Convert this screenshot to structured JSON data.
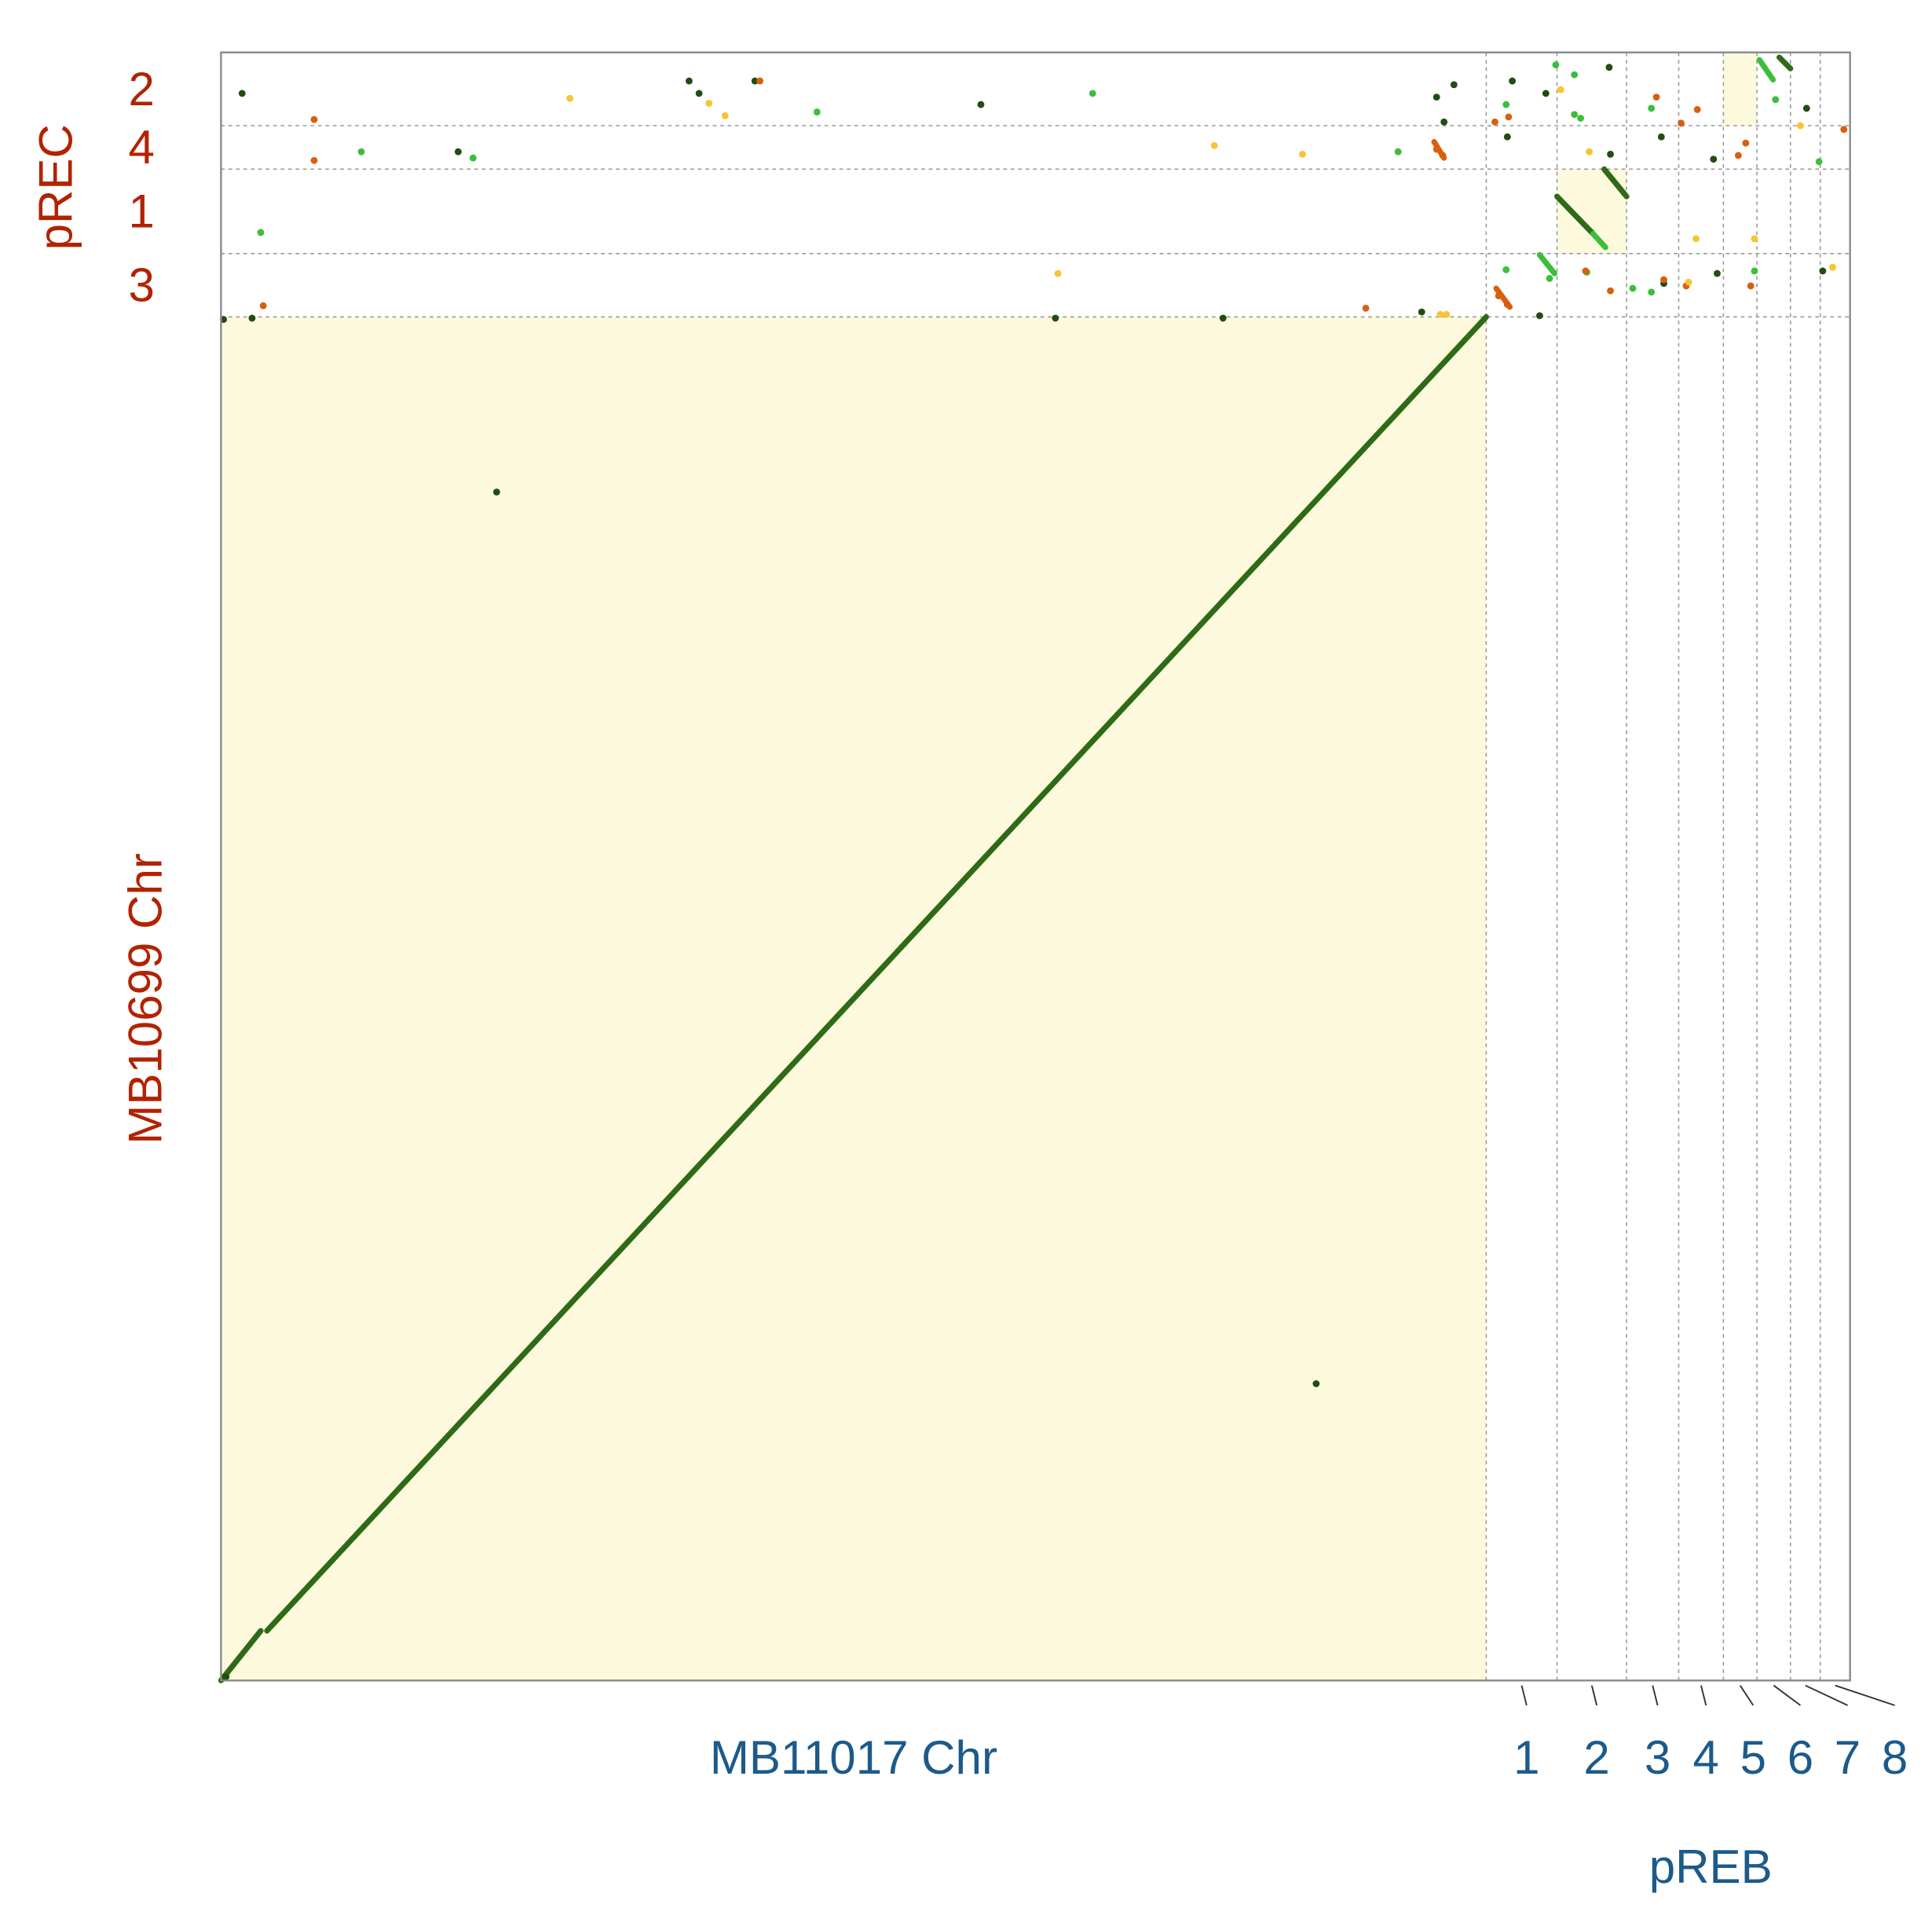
{
  "chart_data": {
    "type": "dotplot",
    "x_sequences": [
      {
        "name": "MB11017 Chr",
        "length": 5095
      },
      {
        "name": "1",
        "length": 285
      },
      {
        "name": "2",
        "length": 280
      },
      {
        "name": "3",
        "length": 210
      },
      {
        "name": "4",
        "length": 180
      },
      {
        "name": "5",
        "length": 135
      },
      {
        "name": "6",
        "length": 135
      },
      {
        "name": "7",
        "length": 120
      },
      {
        "name": "8",
        "length": 120
      }
    ],
    "x_group_label": "pREB",
    "y_sequences": [
      {
        "name": "MB10699 Chr",
        "length": 5490
      },
      {
        "name": "3",
        "length": 255
      },
      {
        "name": "1",
        "length": 340
      },
      {
        "name": "4",
        "length": 175
      },
      {
        "name": "2",
        "length": 295
      }
    ],
    "y_group_label": "pREC",
    "xlim": [
      0,
      6560
    ],
    "ylim": [
      0,
      6555
    ],
    "highlights": [
      [
        "MB11017 Chr",
        "MB10699 Chr"
      ],
      [
        "2",
        "1"
      ],
      [
        "5",
        "2"
      ]
    ],
    "series": [
      {
        "color": "#1f4d12",
        "x": [
          85,
          1885,
          1925,
          2150,
          3060,
          955,
          4895,
          4965,
          4925,
          5200,
          5335,
          5590,
          5180,
          5595,
          5800,
          6010,
          6385,
          6450,
          5310,
          4835,
          10,
          125,
          3360,
          4035,
          1110,
          4410,
          20,
          5810,
          6025
        ],
        "y": [
          6390,
          6440,
          6390,
          6440,
          6345,
          6155,
          6375,
          6425,
          6275,
          6440,
          6390,
          6495,
          6215,
          6145,
          6215,
          6125,
          6330,
          5675,
          5495,
          5510,
          5480,
          5485,
          5485,
          5485,
          4785,
          1195,
          15,
          5625,
          5665
        ]
      },
      {
        "color": "#3bbf3b",
        "x": [
          5375,
          5450,
          5175,
          3510,
          2400,
          565,
          1015,
          4740,
          5450,
          5475,
          5760,
          6260,
          5175,
          5350,
          5685,
          5760,
          6175,
          6435,
          160,
          5500
        ],
        "y": [
          6505,
          6465,
          6345,
          6390,
          6315,
          6155,
          6130,
          6155,
          6305,
          6290,
          6330,
          6365,
          5680,
          5645,
          5605,
          5590,
          5675,
          6115,
          5830,
          5670
        ]
      },
      {
        "color": "#d95f0e",
        "x": [
          375,
          375,
          2170,
          4895,
          4920,
          5130,
          5185,
          5780,
          5880,
          5945,
          6140,
          6110,
          6535,
          5810,
          5900,
          6160,
          4610,
          170,
          5145,
          5180,
          5495,
          5595
        ],
        "y": [
          6285,
          6120,
          6440,
          6165,
          6140,
          6275,
          6295,
          6375,
          6270,
          6325,
          6190,
          6140,
          6245,
          5640,
          5615,
          5615,
          5525,
          5535,
          5575,
          5540,
          5675,
          5595
        ]
      },
      {
        "color": "#f7c531",
        "x": [
          1405,
          1965,
          2030,
          4000,
          4355,
          3370,
          4910,
          4935,
          5395,
          5510,
          5940,
          5910,
          6175,
          6360,
          6490
        ],
        "y": [
          6370,
          6350,
          6300,
          6180,
          6145,
          5665,
          5500,
          5500,
          6405,
          6155,
          5805,
          5630,
          5805,
          6260,
          5690
        ]
      }
    ],
    "segments": [
      {
        "color": "#2f6a16",
        "x": [
          0,
          160
        ],
        "y": [
          0,
          200
        ]
      },
      {
        "color": "#2f6a16",
        "x": [
          185,
          5095
        ],
        "y": [
          200,
          5490
        ]
      },
      {
        "color": "#2f6a16",
        "x": [
          5380,
          5525
        ],
        "y": [
          5975,
          5825
        ]
      },
      {
        "color": "#3bbf3b",
        "x": [
          5525,
          5575
        ],
        "y": [
          5825,
          5770
        ]
      },
      {
        "color": "#2f6a16",
        "x": [
          5570,
          5660
        ],
        "y": [
          6085,
          5975
        ]
      },
      {
        "color": "#3bbf3b",
        "x": [
          6195,
          6250
        ],
        "y": [
          6525,
          6445
        ]
      },
      {
        "color": "#2f6a16",
        "x": [
          6275,
          6320
        ],
        "y": [
          6535,
          6490
        ]
      },
      {
        "color": "#3bbf3b",
        "x": [
          5310,
          5370
        ],
        "y": [
          5740,
          5665
        ]
      },
      {
        "color": "#d95f0e",
        "x": [
          5135,
          5190
        ],
        "y": [
          5605,
          5530
        ]
      },
      {
        "color": "#d95f0e",
        "x": [
          4885,
          4925
        ],
        "y": [
          6195,
          6130
        ]
      }
    ]
  }
}
